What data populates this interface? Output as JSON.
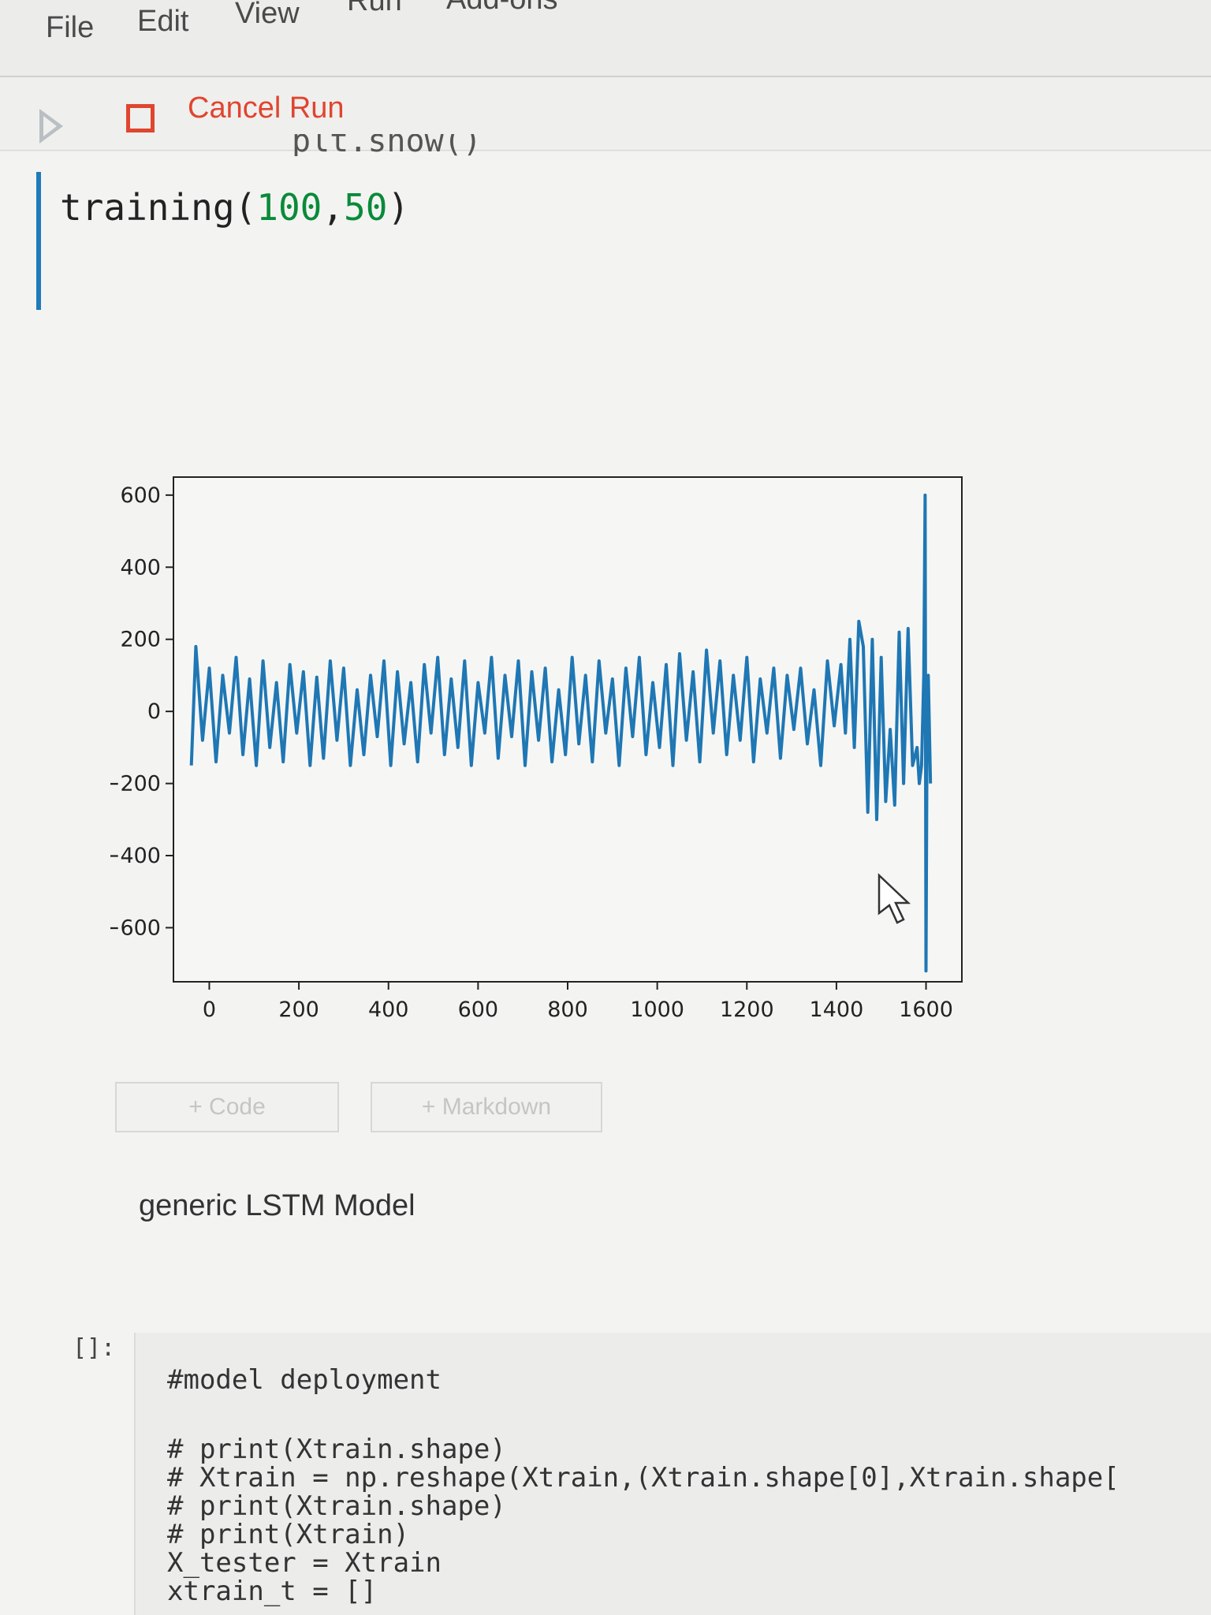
{
  "menu": {
    "file": "File",
    "edit": "Edit",
    "view": "View",
    "run": "Run",
    "addons": "Add-ons"
  },
  "toolbar": {
    "cancel_run": "Cancel Run"
  },
  "cell1": {
    "clipped_top": "plt.show()",
    "fn": "training(",
    "arg1": "100",
    "comma": ",",
    "arg2": "50",
    "close": ")"
  },
  "add_cell": {
    "code": "+ Code",
    "markdown": "+ Markdown"
  },
  "markdown_cell": {
    "text": "generic LSTM Model"
  },
  "code_cell": {
    "prompt": "[]:",
    "lines": [
      "#model deployment",
      "",
      "# print(Xtrain.shape)",
      "# Xtrain = np.reshape(Xtrain,(Xtrain.shape[0],Xtrain.shape[",
      "# print(Xtrain.shape)",
      "# print(Xtrain)",
      "X_tester = Xtrain",
      "xtrain_t = []"
    ]
  },
  "chart_data": {
    "type": "line",
    "line_color": "#1f77b4",
    "xlim": [
      -80,
      1680
    ],
    "ylim": [
      -750,
      650
    ],
    "xticks": [
      0,
      200,
      400,
      600,
      800,
      1000,
      1200,
      1400,
      1600
    ],
    "yticks": [
      600,
      400,
      200,
      0,
      -200,
      -400,
      -600
    ],
    "xtick_labels": [
      "0",
      "200",
      "400",
      "600",
      "800",
      "1000",
      "1200",
      "1400",
      "1600"
    ],
    "ytick_labels": [
      "600",
      "400",
      "200",
      "0",
      "−200",
      "−400",
      "−600"
    ],
    "series": [
      {
        "x": [
          -40,
          -30,
          -15,
          0,
          15,
          30,
          45,
          60,
          75,
          90,
          105,
          120,
          135,
          150,
          165,
          180,
          195,
          210,
          225,
          240,
          255,
          270,
          285,
          300,
          315,
          330,
          345,
          360,
          375,
          390,
          405,
          420,
          435,
          450,
          465,
          480,
          495,
          510,
          525,
          540,
          555,
          570,
          585,
          600,
          615,
          630,
          645,
          660,
          675,
          690,
          705,
          720,
          735,
          750,
          765,
          780,
          795,
          810,
          825,
          840,
          855,
          870,
          885,
          900,
          915,
          930,
          945,
          960,
          975,
          990,
          1005,
          1020,
          1035,
          1050,
          1065,
          1080,
          1095,
          1110,
          1125,
          1140,
          1155,
          1170,
          1185,
          1200,
          1215,
          1230,
          1245,
          1260,
          1275,
          1290,
          1305,
          1320,
          1335,
          1350,
          1365,
          1380,
          1395,
          1410,
          1420,
          1430,
          1440,
          1450,
          1460,
          1470,
          1480,
          1490,
          1500,
          1510,
          1520,
          1530,
          1540,
          1550,
          1560,
          1570,
          1580,
          1585,
          1590,
          1595,
          1598,
          1600,
          1602,
          1605,
          1610
        ],
        "y": [
          -150,
          180,
          -80,
          120,
          -140,
          100,
          -60,
          150,
          -120,
          90,
          -150,
          140,
          -100,
          80,
          -140,
          130,
          -60,
          110,
          -150,
          95,
          -130,
          140,
          -80,
          120,
          -150,
          60,
          -120,
          100,
          -70,
          140,
          -150,
          110,
          -90,
          80,
          -140,
          130,
          -60,
          150,
          -120,
          90,
          -100,
          140,
          -150,
          80,
          -60,
          150,
          -130,
          100,
          -70,
          140,
          -150,
          110,
          -80,
          120,
          -140,
          60,
          -120,
          150,
          -90,
          100,
          -140,
          140,
          -60,
          90,
          -150,
          120,
          -70,
          150,
          -120,
          80,
          -100,
          130,
          -150,
          160,
          -80,
          110,
          -140,
          170,
          -60,
          140,
          -120,
          100,
          -80,
          150,
          -140,
          90,
          -60,
          120,
          -130,
          100,
          -50,
          120,
          -90,
          60,
          -150,
          140,
          -40,
          130,
          -60,
          200,
          -100,
          250,
          180,
          -280,
          200,
          -300,
          150,
          -250,
          -50,
          -260,
          220,
          -200,
          230,
          -150,
          -100,
          -200,
          -150,
          100,
          600,
          -720,
          -100,
          100,
          -200
        ]
      }
    ]
  }
}
